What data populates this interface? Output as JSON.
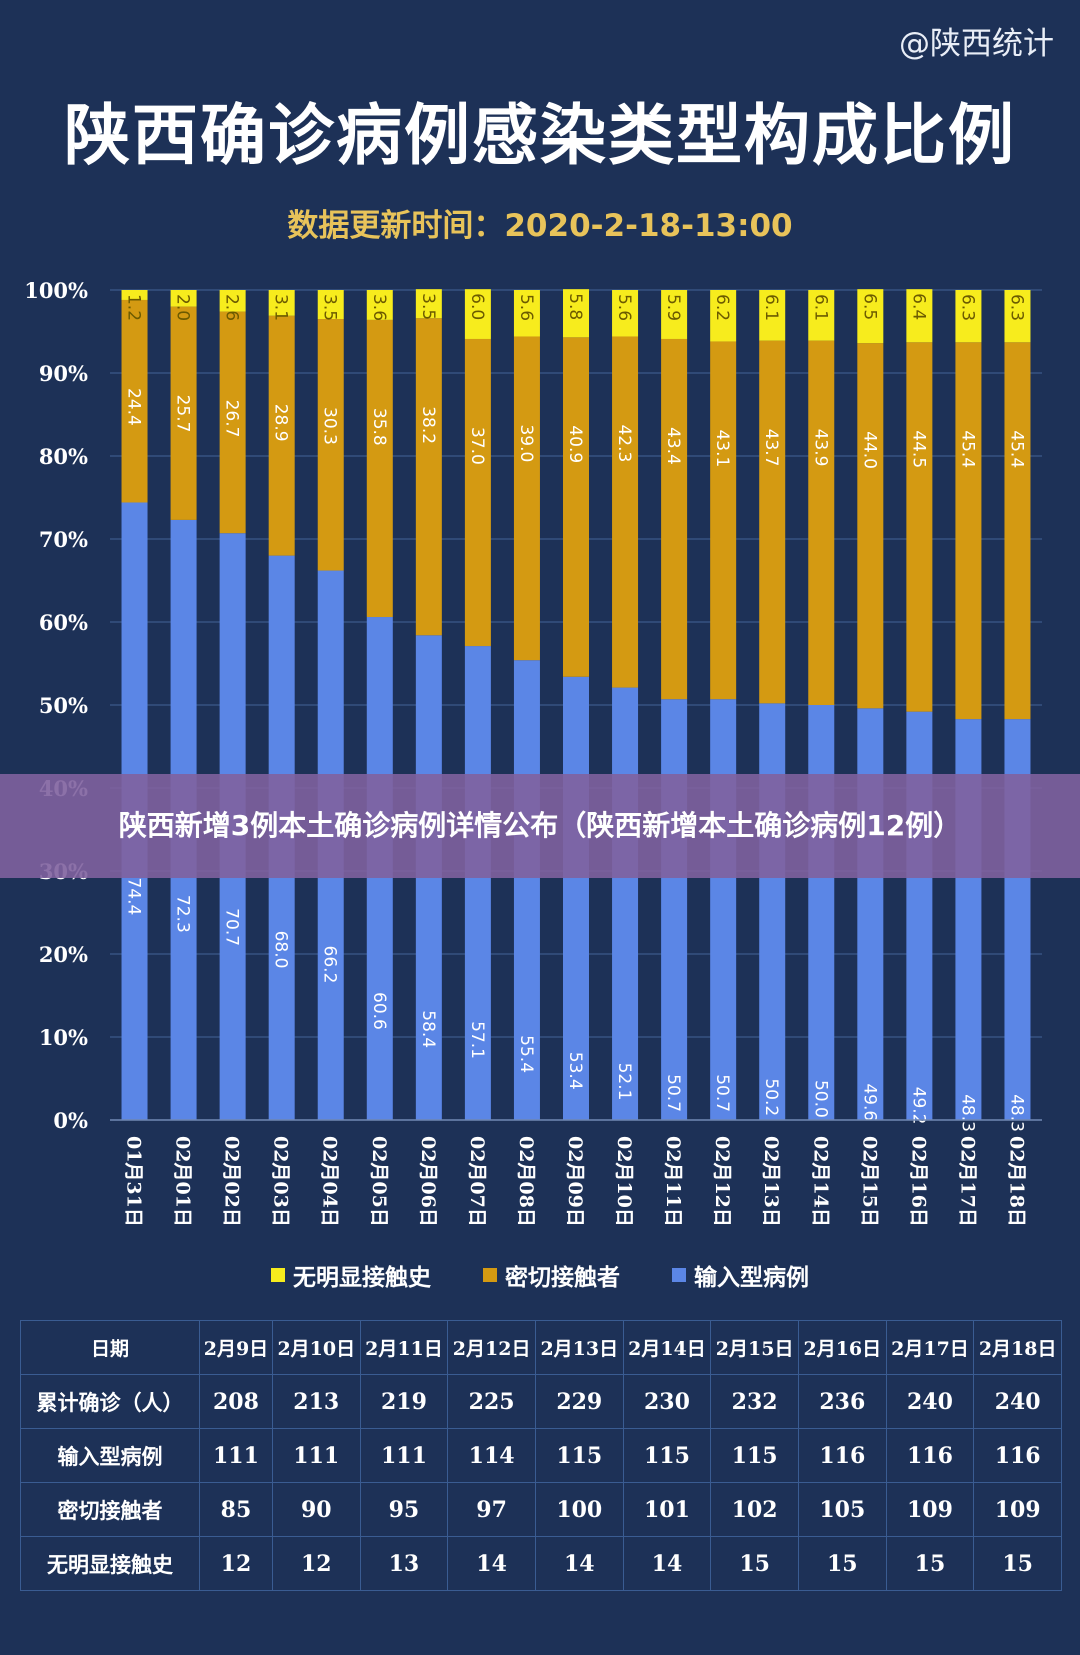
{
  "watermark": "@陕西统计",
  "title": "陕西确诊病例感染类型构成比例",
  "update_time": "数据更新时间：2020-2-18-13:00",
  "overlay_text": "陕西新增3例本土确诊病例详情公布（陕西新增本土确诊病例12例）",
  "legend": [
    {
      "label": "无明显接触史",
      "color": "#f7ec1d"
    },
    {
      "label": "密切接触者",
      "color": "#d49a12"
    },
    {
      "label": "输入型病例",
      "color": "#5b86e6"
    }
  ],
  "chart_data": {
    "type": "bar",
    "stacked": true,
    "categories": [
      "01月31日",
      "02月01日",
      "02月02日",
      "02月03日",
      "02月04日",
      "02月05日",
      "02月06日",
      "02月07日",
      "02月08日",
      "02月09日",
      "02月10日",
      "02月11日",
      "02月12日",
      "02月13日",
      "02月14日",
      "02月15日",
      "02月16日",
      "02月17日",
      "02月18日"
    ],
    "series": [
      {
        "name": "输入型病例",
        "color": "#5b86e6",
        "values": [
          74.4,
          72.3,
          70.7,
          68.0,
          66.2,
          60.6,
          58.4,
          57.1,
          55.4,
          53.4,
          52.1,
          50.7,
          50.7,
          50.2,
          50.0,
          49.6,
          49.2,
          48.3,
          48.3
        ]
      },
      {
        "name": "密切接触者",
        "color": "#d49a12",
        "values": [
          24.4,
          25.7,
          26.7,
          28.9,
          30.3,
          35.8,
          38.2,
          37.0,
          39.0,
          40.9,
          42.3,
          43.4,
          43.1,
          43.7,
          43.9,
          44.0,
          44.5,
          45.4,
          45.4
        ]
      },
      {
        "name": "无明显接触史",
        "color": "#f7ec1d",
        "values": [
          1.2,
          2.0,
          2.6,
          3.1,
          3.5,
          3.6,
          3.5,
          6.0,
          5.6,
          5.8,
          5.6,
          5.9,
          6.2,
          6.1,
          6.1,
          6.5,
          6.4,
          6.3,
          6.3
        ]
      }
    ],
    "y_ticks": [
      "0%",
      "10%",
      "20%",
      "30%",
      "40%",
      "50%",
      "60%",
      "70%",
      "80%",
      "90%",
      "100%"
    ],
    "ylim": [
      0,
      100
    ],
    "grid": true,
    "legend_position": "bottom"
  },
  "table": {
    "header": [
      "日期",
      "2月9日",
      "2月10日",
      "2月11日",
      "2月12日",
      "2月13日",
      "2月14日",
      "2月15日",
      "2月16日",
      "2月17日",
      "2月18日"
    ],
    "rows": [
      [
        "累计确诊（人）",
        "208",
        "213",
        "219",
        "225",
        "229",
        "230",
        "232",
        "236",
        "240",
        "240"
      ],
      [
        "输入型病例",
        "111",
        "111",
        "111",
        "114",
        "115",
        "115",
        "115",
        "116",
        "116",
        "116"
      ],
      [
        "密切接触者",
        "85",
        "90",
        "95",
        "97",
        "100",
        "101",
        "102",
        "105",
        "109",
        "109"
      ],
      [
        "无明显接触史",
        "12",
        "12",
        "13",
        "14",
        "14",
        "14",
        "15",
        "15",
        "15",
        "15"
      ]
    ]
  }
}
